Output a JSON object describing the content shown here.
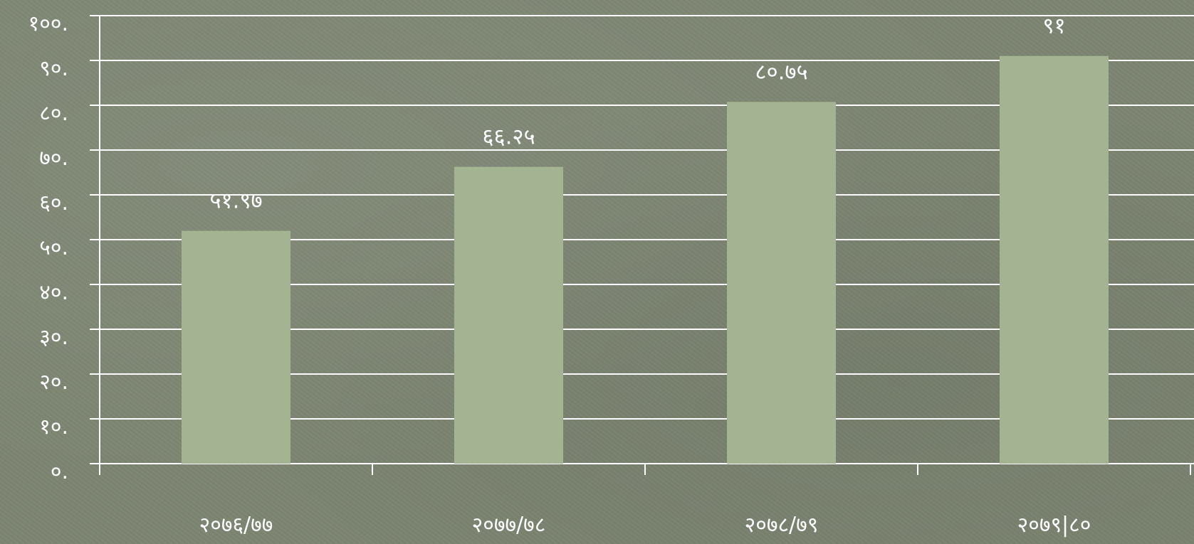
{
  "chart_data": {
    "type": "bar",
    "categories": [
      "२०७६/७७",
      "२०७७/७८",
      "२०७८/७९",
      "२०७९|८०"
    ],
    "values": [
      51.97,
      66.25,
      80.75,
      91
    ],
    "data_labels": [
      "५१.९७",
      "६६.२५",
      "८०.७५",
      "९१"
    ],
    "ylim": [
      0,
      100
    ],
    "y_ticks": [
      0,
      10,
      20,
      30,
      40,
      50,
      60,
      70,
      80,
      90,
      100
    ],
    "y_tick_labels": [
      "०.",
      "१०.",
      "२०.",
      "३०.",
      "४०.",
      "५०.",
      "६०.",
      "७०.",
      "८०.",
      "९०.",
      "१००."
    ],
    "title": "",
    "xlabel": "",
    "ylabel": "",
    "grid": true,
    "legend": "none",
    "colors": {
      "bar": "#a4b391",
      "grid": "#ffffff",
      "text": "#ffffff"
    }
  }
}
